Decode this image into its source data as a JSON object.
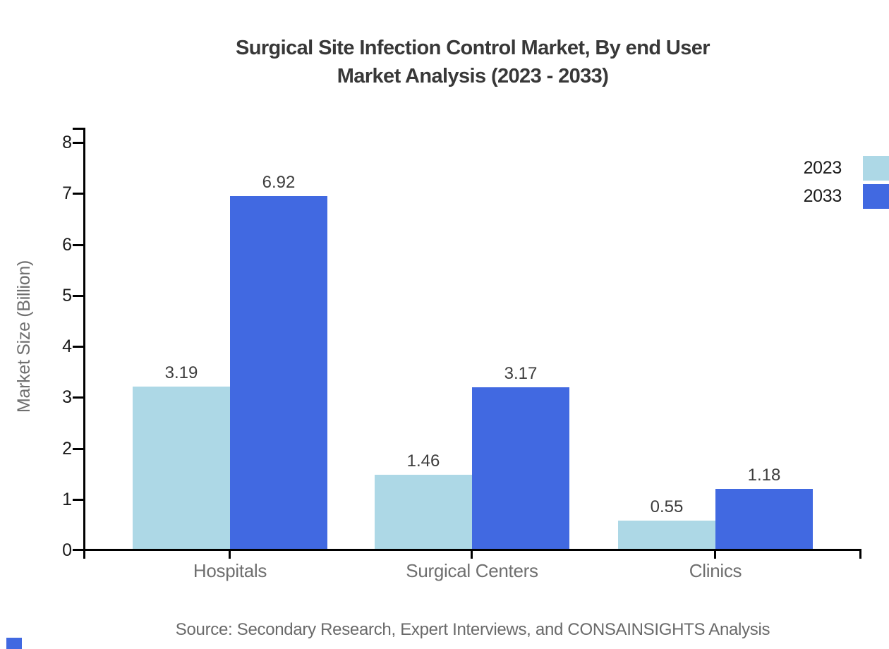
{
  "title": {
    "line1": "Surgical Site Infection Control Market, By end User",
    "line2": "Market Analysis (2023 - 2033)"
  },
  "source": "Source: Secondary Research, Expert Interviews, and CONSAINSIGHTS Analysis",
  "chart_data": {
    "type": "bar",
    "categories": [
      "Hospitals",
      "Surgical Centers",
      "Clinics"
    ],
    "series": [
      {
        "name": "2023",
        "color": "#ADD8E6",
        "values": [
          3.19,
          1.46,
          0.55
        ]
      },
      {
        "name": "2033",
        "color": "#4169E1",
        "values": [
          6.92,
          3.17,
          1.18
        ]
      }
    ],
    "value_labels": [
      "3.19",
      "6.92",
      "1.46",
      "3.17",
      "0.55",
      "1.18"
    ],
    "title": "Surgical Site Infection Control Market, By end User Market Analysis (2023 - 2033)",
    "xlabel": "",
    "ylabel": "Market Size (Billion)",
    "ylim": [
      0,
      8
    ],
    "yticks": [
      0,
      1,
      2,
      3,
      4,
      5,
      6,
      7,
      8
    ],
    "grid": false,
    "legend_position": "top-right"
  },
  "colors": {
    "axis": "#000000",
    "title_text": "#383838",
    "tick_text": "#1b1b1b",
    "value_text": "#3d3d3d",
    "category_text": "#6f6f6f",
    "source_text": "#6a6a6a",
    "series_2023": "#ADD8E6",
    "series_2033": "#4169E1",
    "brand_mark": "#4169E1"
  }
}
